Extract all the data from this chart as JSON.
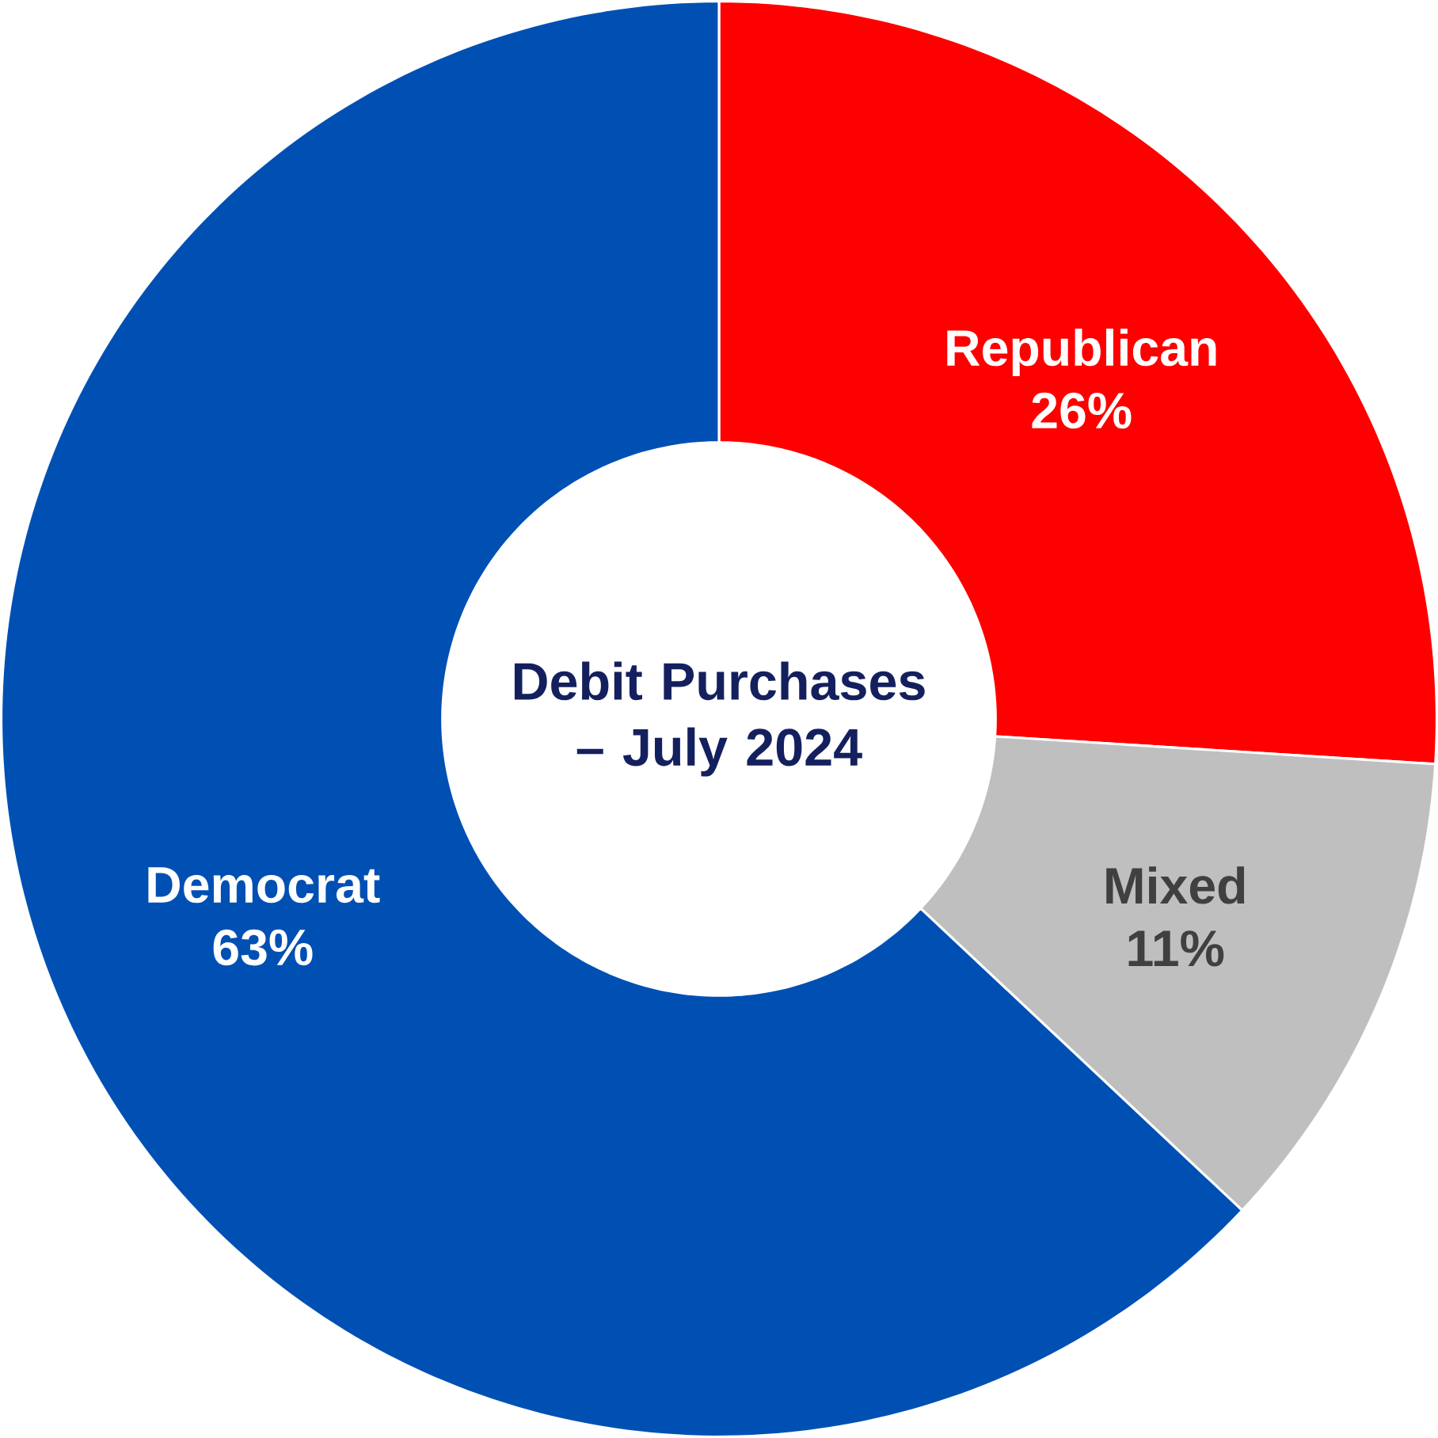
{
  "chart_data": {
    "type": "donut",
    "title": "Debit Purchases – July 2024",
    "categories": [
      "Republican",
      "Mixed",
      "Democrat"
    ],
    "values": [
      26,
      11,
      63
    ],
    "value_labels": [
      "26%",
      "11%",
      "63%"
    ],
    "colors": [
      "#ff0000",
      "#bfbfbf",
      "#0050b4"
    ]
  }
}
